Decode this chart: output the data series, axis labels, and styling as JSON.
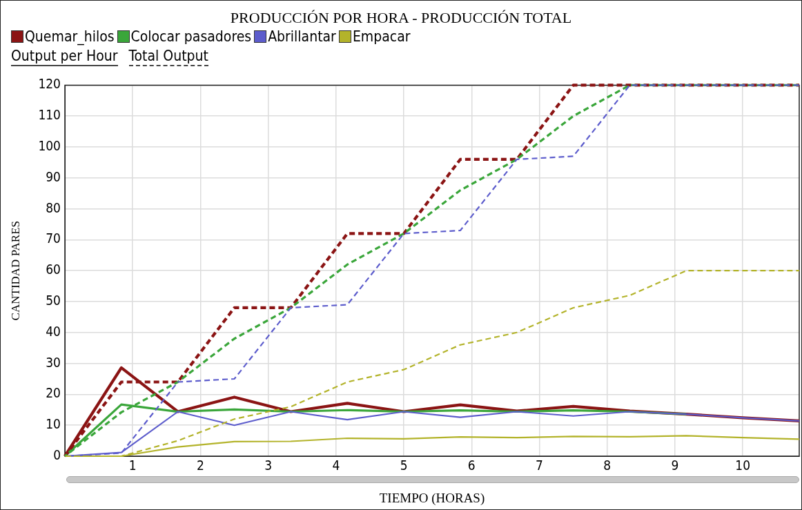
{
  "chart_data": {
    "type": "line",
    "title": "PRODUCCIÓN POR HORA - PRODUCCIÓN TOTAL",
    "xlabel": "TIEMPO (HORAS)",
    "ylabel": "CANTIDAD PARES",
    "x": [
      0,
      0.833,
      1.667,
      2.5,
      3.333,
      4.167,
      5,
      5.833,
      6.667,
      7.5,
      8.333,
      9.167,
      10,
      10.833
    ],
    "xlim": [
      0,
      10.833
    ],
    "xticks": [
      1,
      2,
      3,
      4,
      5,
      6,
      7,
      8,
      9,
      10
    ],
    "ylim": [
      0,
      120
    ],
    "yticks": [
      0,
      10,
      20,
      30,
      40,
      50,
      60,
      70,
      80,
      90,
      100,
      110,
      120
    ],
    "grid": true,
    "legend": "top left",
    "marker": "none",
    "annotations": [
      "Output per Hour",
      "Total Output"
    ],
    "series": [
      {
        "name": "Quemar_hilos",
        "color": "#8b1414",
        "line_style": "solid",
        "values": [
          0,
          28.6,
          14.4,
          19.1,
          14.4,
          17.1,
          14.4,
          16.6,
          14.6,
          16.1,
          14.6,
          13.6,
          12.4,
          11.4
        ]
      },
      {
        "name": "Colocar pasadores",
        "color": "#3aa63a",
        "line_style": "solid",
        "values": [
          0,
          16.7,
          14.4,
          15.1,
          14.4,
          14.9,
          14.4,
          14.8,
          14.4,
          14.8,
          14.4,
          13.6,
          null,
          null
        ]
      },
      {
        "name": "Abrillantar",
        "color": "#5c5ccc",
        "line_style": "solid",
        "values": [
          0,
          1.2,
          14.4,
          10,
          14.4,
          11.8,
          14.4,
          12.6,
          14.4,
          13,
          14.4,
          13.6,
          12.4,
          11.4
        ]
      },
      {
        "name": "Empacar",
        "color": "#b3b32a",
        "line_style": "solid",
        "values": [
          0,
          0,
          3,
          4.7,
          4.8,
          5.8,
          5.6,
          6.2,
          6,
          6.4,
          6.3,
          6.6,
          6,
          5.5
        ]
      },
      {
        "color": "#8b1414",
        "line_style": "dashed",
        "values": [
          0,
          24,
          24,
          48,
          48,
          72,
          72,
          96,
          96,
          120,
          120,
          120,
          120,
          120
        ]
      },
      {
        "color": "#3aa63a",
        "line_style": "dashed",
        "values": [
          0,
          14.2,
          24,
          38,
          48,
          62,
          72,
          86,
          96,
          110,
          120,
          120,
          120,
          120
        ]
      },
      {
        "color": "#5c5ccc",
        "line_style": "dashed",
        "values": [
          0,
          1,
          24,
          25,
          48,
          49,
          72,
          73,
          96,
          97,
          120,
          120,
          120,
          120
        ]
      },
      {
        "color": "#b3b32a",
        "line_style": "dashed",
        "values": [
          0,
          0,
          5,
          12,
          16,
          24,
          28,
          36,
          40,
          48,
          52,
          60,
          60,
          60
        ]
      }
    ]
  }
}
